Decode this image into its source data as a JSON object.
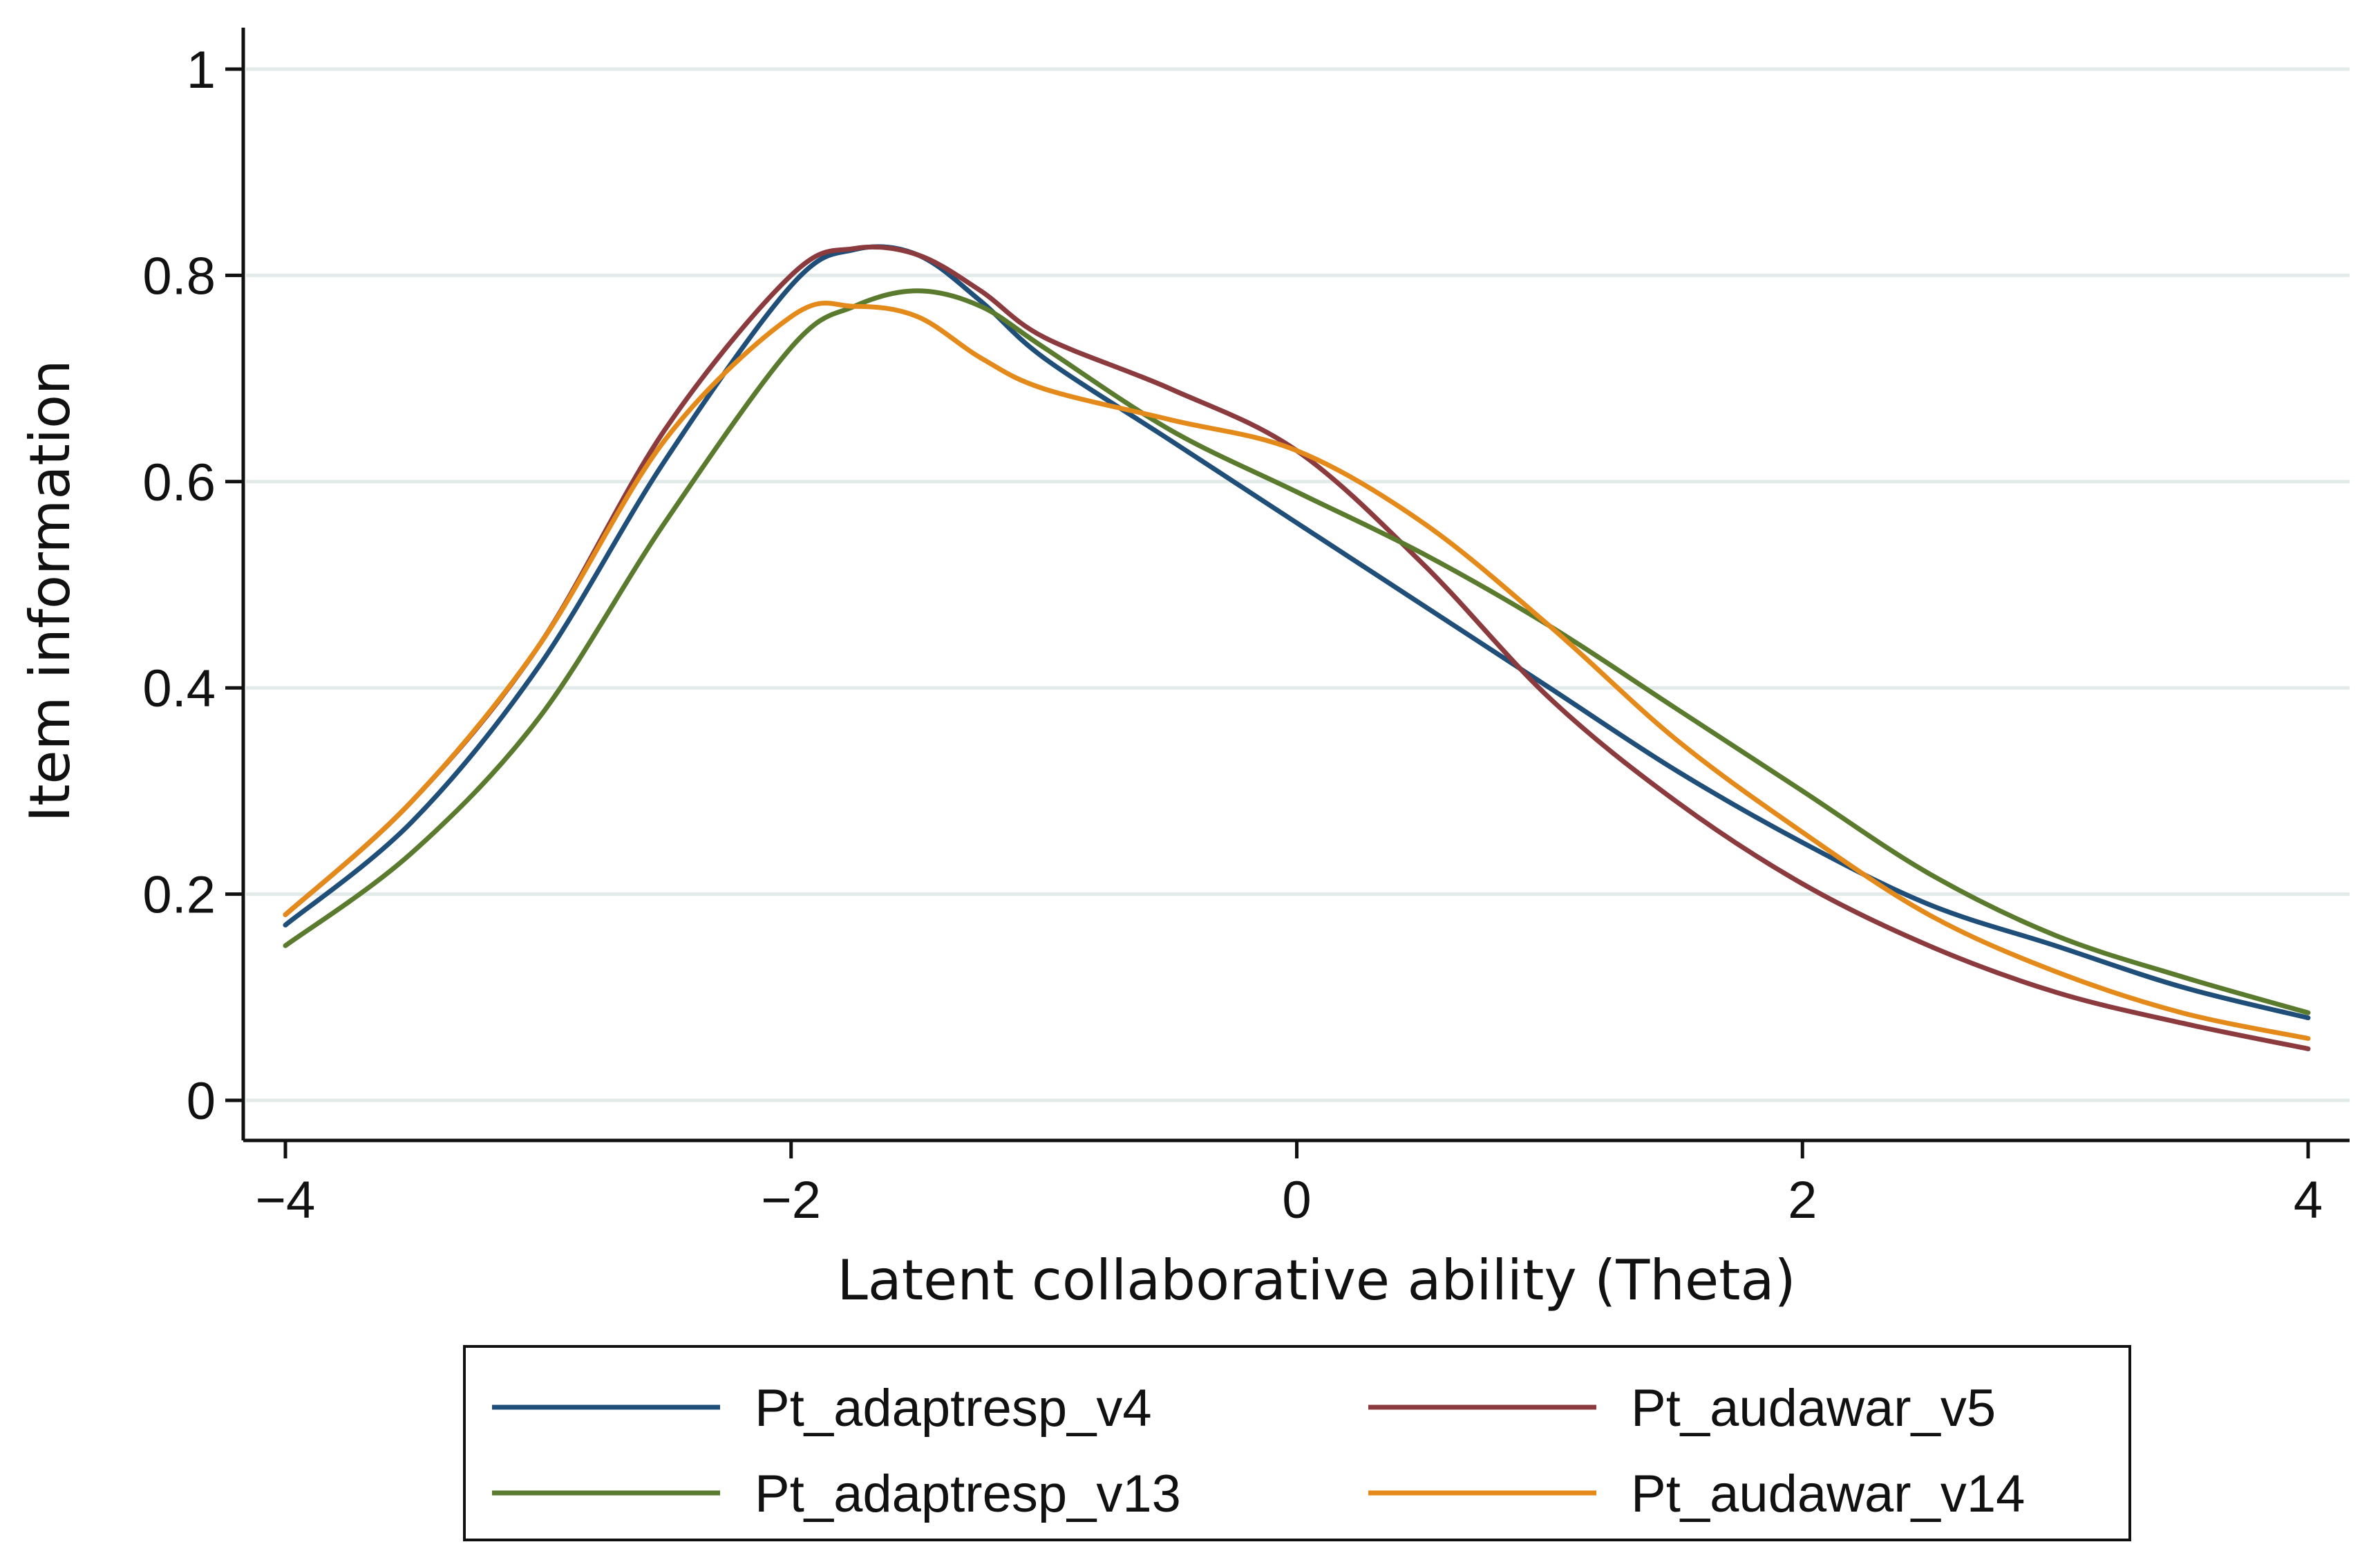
{
  "chart_data": {
    "type": "line",
    "title": "",
    "xlabel": "Latent collaborative ability (Theta)",
    "ylabel": "Item information",
    "xlim": [
      -4,
      4
    ],
    "ylim": [
      0,
      1
    ],
    "x_ticks": [
      -4,
      -2,
      0,
      2,
      4
    ],
    "x_tick_labels": [
      "−4",
      "−2",
      "0",
      "2",
      "4"
    ],
    "y_ticks": [
      0,
      0.2,
      0.4,
      0.6,
      0.8,
      1
    ],
    "y_tick_labels": [
      "0",
      "0.2",
      "0.4",
      "0.6",
      "0.8",
      "1"
    ],
    "grid": true,
    "legend_position": "bottom",
    "x": [
      -4,
      -3.5,
      -3,
      -2.5,
      -2,
      -1.75,
      -1.5,
      -1.25,
      -1,
      -0.5,
      0,
      0.5,
      1,
      1.5,
      2,
      2.5,
      3,
      3.5,
      4
    ],
    "series": [
      {
        "name": "Pt_adaptresp_v4",
        "color": "#1f4e79",
        "values": [
          0.17,
          0.27,
          0.42,
          0.62,
          0.79,
          0.825,
          0.82,
          0.775,
          0.72,
          0.64,
          0.56,
          0.48,
          0.4,
          0.32,
          0.25,
          0.19,
          0.15,
          0.11,
          0.08
        ]
      },
      {
        "name": "Pt_audawar_v5",
        "color": "#8b3a3e",
        "values": [
          0.18,
          0.29,
          0.44,
          0.65,
          0.8,
          0.826,
          0.82,
          0.785,
          0.74,
          0.69,
          0.63,
          0.52,
          0.39,
          0.29,
          0.21,
          0.15,
          0.105,
          0.075,
          0.05
        ]
      },
      {
        "name": "Pt_adaptresp_v13",
        "color": "#5a7a2e",
        "values": [
          0.15,
          0.24,
          0.37,
          0.56,
          0.73,
          0.77,
          0.785,
          0.77,
          0.73,
          0.65,
          0.59,
          0.53,
          0.46,
          0.38,
          0.3,
          0.22,
          0.16,
          0.12,
          0.085
        ]
      },
      {
        "name": "Pt_audawar_v14",
        "color": "#e48a1a",
        "values": [
          0.18,
          0.29,
          0.44,
          0.64,
          0.76,
          0.77,
          0.76,
          0.72,
          0.69,
          0.66,
          0.63,
          0.56,
          0.46,
          0.35,
          0.26,
          0.18,
          0.125,
          0.085,
          0.06
        ]
      }
    ]
  }
}
